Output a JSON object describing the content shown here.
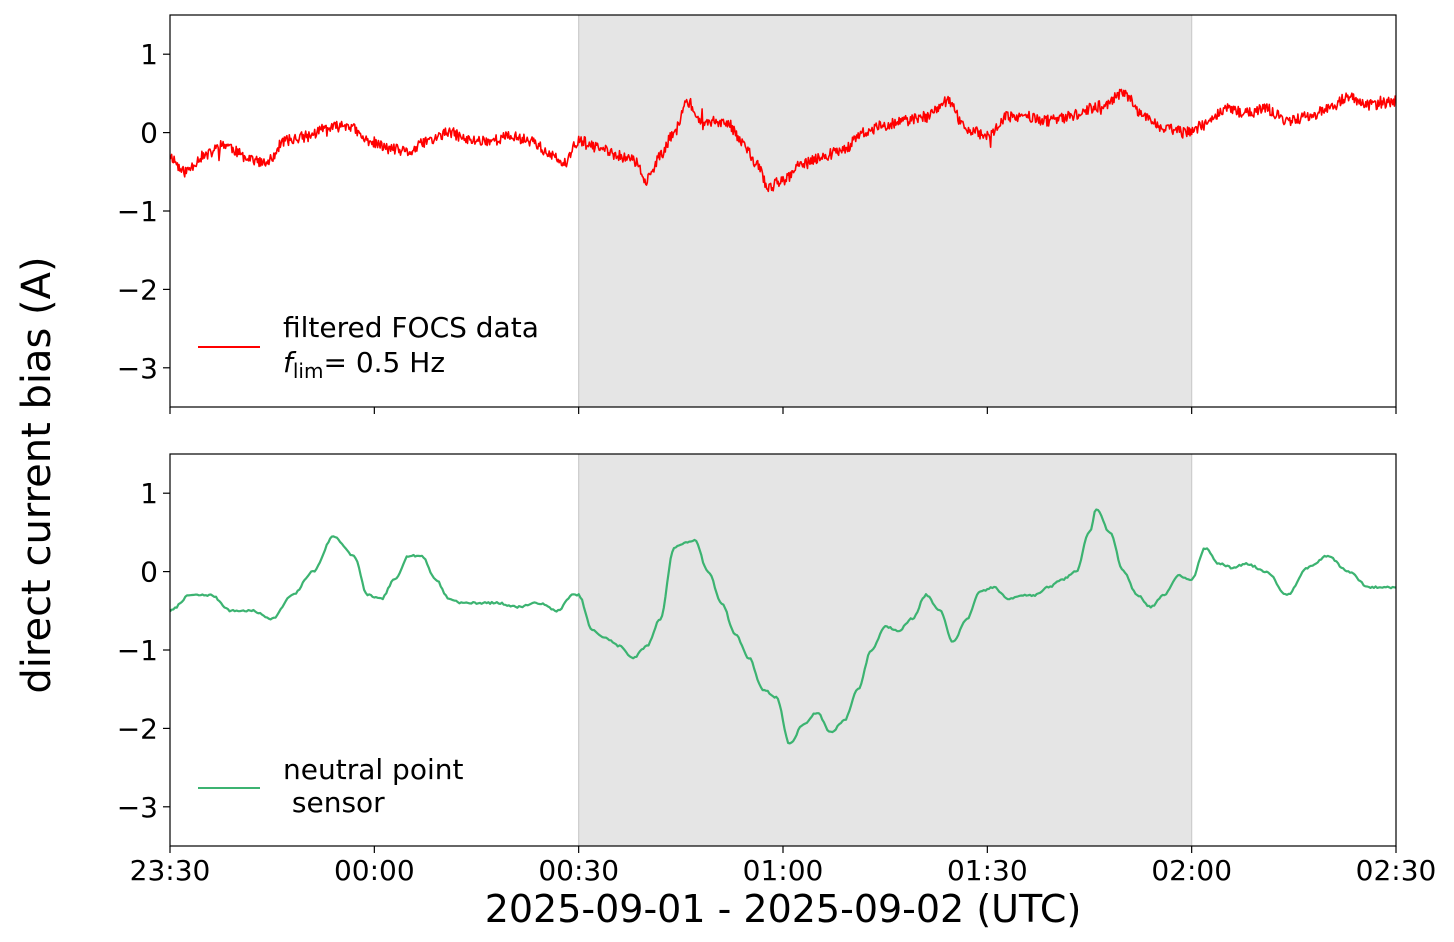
{
  "figure": {
    "ylabel": "direct current bias (A)",
    "xlabel": "2025-09-01 - 2025-09-02 (UTC)"
  },
  "shaded_interval": {
    "start": "00:30",
    "end": "02:00",
    "color": "#e5e5e5"
  },
  "chart_data": [
    {
      "type": "line",
      "xlim": [
        "2025-09-01 23:30",
        "2025-09-02 02:30"
      ],
      "ylim": [
        -3.5,
        1.5
      ],
      "yticks": [
        1,
        0,
        -1,
        -2,
        -3
      ],
      "ytick_labels": [
        "1",
        "0",
        "−1",
        "−2",
        "−3"
      ],
      "xtick_labels": [],
      "legend": {
        "placement": "lower-left",
        "lines": [
          "filtered FOCS data",
          "f_lim = 0.5 Hz"
        ]
      },
      "legend_math": {
        "symbol": "f",
        "subscript": "lim",
        "rest": "=  0.5 Hz"
      },
      "series": [
        {
          "name": "filtered FOCS data f_lim = 0.5 Hz",
          "color": "#ff0000",
          "noise": 0.07,
          "seed": 11,
          "x": [
            "23:30",
            "23:32",
            "23:35",
            "23:38",
            "23:41",
            "23:44",
            "23:47",
            "23:50",
            "23:53",
            "23:56",
            "23:59",
            "00:02",
            "00:05",
            "00:08",
            "00:11",
            "00:14",
            "00:17",
            "00:20",
            "00:23",
            "00:26",
            "00:28",
            "00:30",
            "00:33",
            "00:36",
            "00:38",
            "00:40",
            "00:42",
            "00:44",
            "00:46",
            "00:48",
            "00:50",
            "00:52",
            "00:54",
            "00:56",
            "00:58",
            "01:00",
            "01:03",
            "01:06",
            "01:09",
            "01:12",
            "01:15",
            "01:18",
            "01:21",
            "01:24",
            "01:27",
            "01:30",
            "01:33",
            "01:36",
            "01:39",
            "01:42",
            "01:45",
            "01:47",
            "01:50",
            "01:53",
            "01:56",
            "01:59",
            "02:02",
            "02:05",
            "02:08",
            "02:11",
            "02:14",
            "02:17",
            "02:20",
            "02:23",
            "02:26",
            "02:30"
          ],
          "values": [
            -0.3,
            -0.5,
            -0.3,
            -0.15,
            -0.3,
            -0.4,
            -0.1,
            -0.05,
            0.05,
            0.1,
            -0.1,
            -0.2,
            -0.25,
            -0.1,
            0.0,
            -0.1,
            -0.1,
            -0.05,
            -0.1,
            -0.3,
            -0.4,
            -0.1,
            -0.2,
            -0.3,
            -0.35,
            -0.6,
            -0.3,
            0.0,
            0.4,
            0.1,
            0.15,
            0.1,
            -0.1,
            -0.4,
            -0.7,
            -0.6,
            -0.4,
            -0.3,
            -0.2,
            0.0,
            0.1,
            0.15,
            0.2,
            0.4,
            0.05,
            -0.05,
            0.2,
            0.2,
            0.15,
            0.2,
            0.3,
            0.35,
            0.5,
            0.2,
            0.05,
            0.0,
            0.1,
            0.3,
            0.25,
            0.3,
            0.15,
            0.2,
            0.3,
            0.45,
            0.35,
            0.4
          ]
        }
      ]
    },
    {
      "type": "line",
      "xlim": [
        "2025-09-01 23:30",
        "2025-09-02 02:30"
      ],
      "ylim": [
        -3.5,
        1.5
      ],
      "yticks": [
        1,
        0,
        -1,
        -2,
        -3
      ],
      "ytick_labels": [
        "1",
        "0",
        "−1",
        "−2",
        "−3"
      ],
      "xtick_labels": [
        "23:30",
        "00:00",
        "00:30",
        "01:00",
        "01:30",
        "02:00",
        "02:30"
      ],
      "legend": {
        "placement": "lower-left",
        "lines": [
          "neutral point",
          " sensor"
        ]
      },
      "series": [
        {
          "name": "neutral point sensor",
          "color": "#3cb371",
          "noise": 0.012,
          "seed": 7,
          "x": [
            "23:30",
            "23:33",
            "23:36",
            "23:39",
            "23:42",
            "23:45",
            "23:48",
            "23:51",
            "23:54",
            "23:57",
            "23:59",
            "00:01",
            "00:03",
            "00:05",
            "00:07",
            "00:09",
            "00:11",
            "00:13",
            "00:15",
            "00:18",
            "00:21",
            "00:24",
            "00:27",
            "00:29",
            "00:30",
            "00:32",
            "00:34",
            "00:36",
            "00:38",
            "00:40",
            "00:42",
            "00:44",
            "00:45",
            "00:47",
            "00:49",
            "00:51",
            "00:53",
            "00:55",
            "00:57",
            "00:59",
            "01:01",
            "01:03",
            "01:05",
            "01:07",
            "01:09",
            "01:11",
            "01:13",
            "01:15",
            "01:17",
            "01:19",
            "01:21",
            "01:23",
            "01:25",
            "01:27",
            "01:29",
            "01:31",
            "01:33",
            "01:35",
            "01:37",
            "01:39",
            "01:41",
            "01:43",
            "01:45",
            "01:46",
            "01:48",
            "01:50",
            "01:52",
            "01:54",
            "01:56",
            "01:58",
            "02:00",
            "02:02",
            "02:04",
            "02:06",
            "02:08",
            "02:11",
            "02:14",
            "02:17",
            "02:20",
            "02:23",
            "02:26",
            "02:30"
          ],
          "values": [
            -0.5,
            -0.3,
            -0.3,
            -0.5,
            -0.5,
            -0.6,
            -0.3,
            0.0,
            0.45,
            0.2,
            -0.3,
            -0.35,
            -0.1,
            0.2,
            0.2,
            -0.1,
            -0.35,
            -0.4,
            -0.4,
            -0.4,
            -0.45,
            -0.4,
            -0.5,
            -0.3,
            -0.3,
            -0.75,
            -0.85,
            -0.95,
            -1.1,
            -0.95,
            -0.6,
            0.3,
            0.35,
            0.4,
            0.0,
            -0.4,
            -0.8,
            -1.1,
            -1.5,
            -1.6,
            -2.2,
            -1.95,
            -1.8,
            -2.05,
            -1.9,
            -1.5,
            -1.0,
            -0.7,
            -0.75,
            -0.6,
            -0.3,
            -0.5,
            -0.9,
            -0.6,
            -0.25,
            -0.2,
            -0.35,
            -0.3,
            -0.3,
            -0.2,
            -0.1,
            0.0,
            0.5,
            0.8,
            0.5,
            0.0,
            -0.3,
            -0.45,
            -0.3,
            -0.05,
            -0.1,
            0.3,
            0.1,
            0.05,
            0.1,
            0.0,
            -0.3,
            0.05,
            0.2,
            0.0,
            -0.2,
            -0.2
          ]
        }
      ]
    }
  ]
}
